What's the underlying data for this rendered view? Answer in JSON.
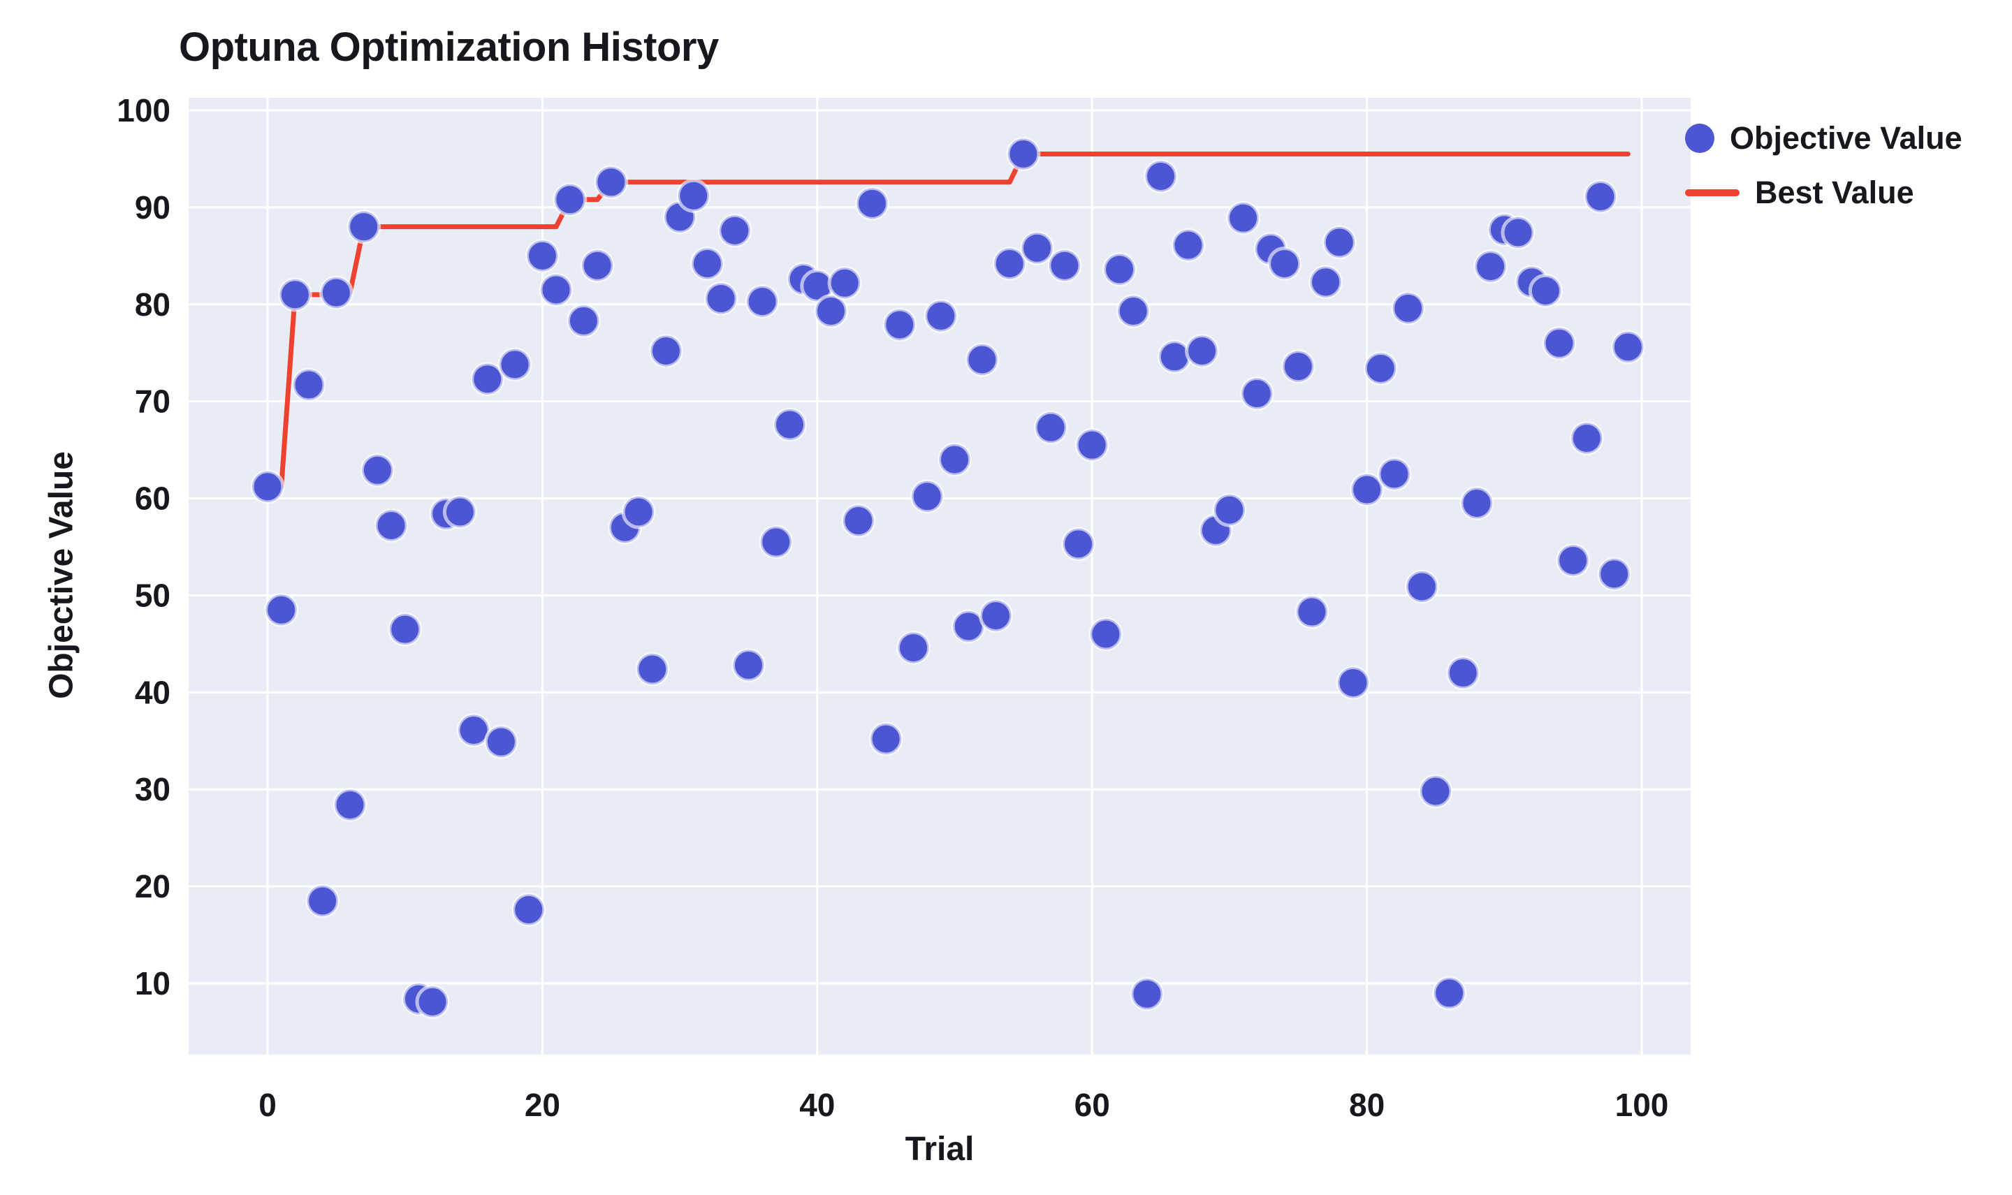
{
  "title": "Optuna Optimization History",
  "legend": {
    "items": [
      {
        "label": "Objective Value",
        "swatch": "marker"
      },
      {
        "label": "Best Value",
        "swatch": "line"
      }
    ]
  },
  "colors": {
    "marker": "#4c55d2",
    "marker_halo": "#ffffff",
    "best_line": "#ee4130",
    "plot_background": "#e9ecf5",
    "gridline": "#ffffff",
    "text": "#16181d"
  },
  "chart_data": {
    "type": "scatter",
    "title": "Optuna Optimization History",
    "xlabel": "Trial",
    "ylabel": "Objective Value",
    "x_ticks": [
      0,
      20,
      40,
      60,
      80,
      100
    ],
    "y_ticks": [
      100,
      90,
      80,
      70,
      60,
      50,
      40,
      30,
      20,
      10
    ],
    "xlim": [
      -5.7,
      103.6
    ],
    "ylim": [
      2.6,
      101.3
    ],
    "grid": true,
    "legend_position": "top-right",
    "x": [
      0,
      1,
      2,
      3,
      4,
      5,
      6,
      7,
      8,
      9,
      10,
      11,
      12,
      13,
      14,
      15,
      16,
      17,
      18,
      19,
      20,
      21,
      22,
      23,
      24,
      25,
      26,
      27,
      28,
      29,
      30,
      31,
      32,
      33,
      34,
      35,
      36,
      37,
      38,
      39,
      40,
      41,
      42,
      43,
      44,
      45,
      46,
      47,
      48,
      49,
      50,
      51,
      52,
      53,
      54,
      55,
      56,
      57,
      58,
      59,
      60,
      61,
      62,
      63,
      64,
      65,
      66,
      67,
      68,
      69,
      70,
      71,
      72,
      73,
      74,
      75,
      76,
      77,
      78,
      79,
      80,
      81,
      82,
      83,
      84,
      85,
      86,
      87,
      88,
      89,
      90,
      91,
      92,
      93,
      94,
      95,
      96,
      97,
      98,
      99
    ],
    "series": [
      {
        "name": "Objective Value",
        "values": [
          61.2,
          48.5,
          81.0,
          71.7,
          18.5,
          81.2,
          28.4,
          88.0,
          62.9,
          57.2,
          46.5,
          8.4,
          8.1,
          58.4,
          58.6,
          36.1,
          72.3,
          34.9,
          73.8,
          17.6,
          85.0,
          81.5,
          90.8,
          78.3,
          84.0,
          92.6,
          57.0,
          58.6,
          42.4,
          75.2,
          89.0,
          91.2,
          84.2,
          80.6,
          87.6,
          42.8,
          80.3,
          55.5,
          67.6,
          82.6,
          81.9,
          79.3,
          82.2,
          57.7,
          90.4,
          35.2,
          77.9,
          44.6,
          60.2,
          78.8,
          64.0,
          46.8,
          74.3,
          47.9,
          84.2,
          95.5,
          85.8,
          67.3,
          84.0,
          55.3,
          65.5,
          46.0,
          83.6,
          79.3,
          8.9,
          93.2,
          74.6,
          86.1,
          75.2,
          56.7,
          58.8,
          88.9,
          70.8,
          85.7,
          84.2,
          73.6,
          48.3,
          82.3,
          86.4,
          41.0,
          60.9,
          73.4,
          62.5,
          79.6,
          50.9,
          29.8,
          9.0,
          42.0,
          59.5,
          83.9,
          87.7,
          87.4,
          82.3,
          81.4,
          76.0,
          53.6,
          66.2,
          91.1,
          52.2,
          75.6
        ]
      },
      {
        "name": "Best Value",
        "values": [
          61.2,
          61.2,
          81.0,
          81.0,
          81.0,
          81.2,
          81.2,
          88.0,
          88.0,
          88.0,
          88.0,
          88.0,
          88.0,
          88.0,
          88.0,
          88.0,
          88.0,
          88.0,
          88.0,
          88.0,
          88.0,
          88.0,
          90.8,
          90.8,
          90.8,
          92.6,
          92.6,
          92.6,
          92.6,
          92.6,
          92.6,
          92.6,
          92.6,
          92.6,
          92.6,
          92.6,
          92.6,
          92.6,
          92.6,
          92.6,
          92.6,
          92.6,
          92.6,
          92.6,
          92.6,
          92.6,
          92.6,
          92.6,
          92.6,
          92.6,
          92.6,
          92.6,
          92.6,
          92.6,
          92.6,
          95.5,
          95.5,
          95.5,
          95.5,
          95.5,
          95.5,
          95.5,
          95.5,
          95.5,
          95.5,
          95.5,
          95.5,
          95.5,
          95.5,
          95.5,
          95.5,
          95.5,
          95.5,
          95.5,
          95.5,
          95.5,
          95.5,
          95.5,
          95.5,
          95.5,
          95.5,
          95.5,
          95.5,
          95.5,
          95.5,
          95.5,
          95.5,
          95.5,
          95.5,
          95.5,
          95.5,
          95.5,
          95.5,
          95.5,
          95.5,
          95.5,
          95.5,
          95.5,
          95.5,
          95.5
        ]
      }
    ]
  }
}
